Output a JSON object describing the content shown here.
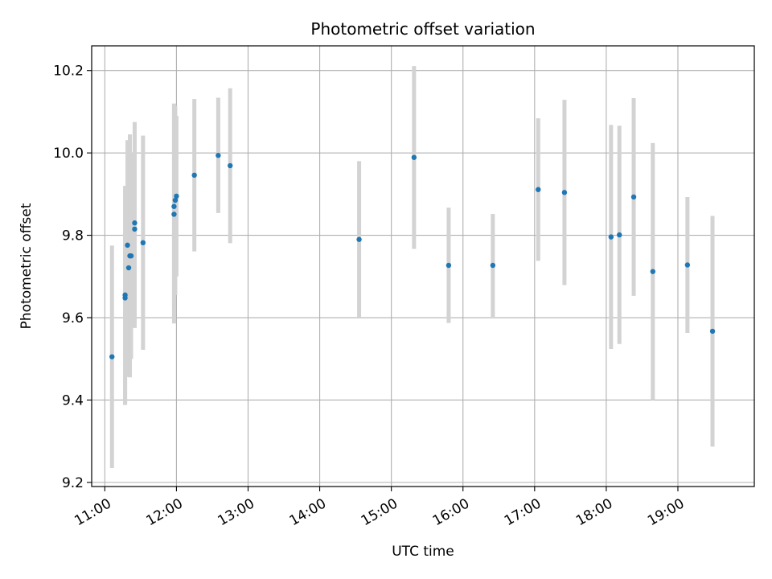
{
  "chart_data": {
    "type": "scatter",
    "title": "Photometric offset variation",
    "xlabel": "UTC time",
    "ylabel": "Photometric offset",
    "grid": true,
    "x_unit": "UTC time (HH:MM)",
    "xlim": [
      "10:49",
      "20:04"
    ],
    "ylim": [
      9.19,
      10.26
    ],
    "x_ticks": [
      "11:00",
      "12:00",
      "13:00",
      "14:00",
      "15:00",
      "16:00",
      "17:00",
      "18:00",
      "19:00"
    ],
    "y_ticks": [
      "9.2",
      "9.4",
      "9.6",
      "9.8",
      "10.0",
      "10.2"
    ],
    "colors": {
      "points": "#1f77b4",
      "error_bars": "#d3d3d3",
      "grid": "#b0b0b0"
    },
    "series": [
      {
        "points": [
          {
            "x": "11:06",
            "y": 9.505,
            "err": 0.27
          },
          {
            "x": "11:17",
            "y": 9.655,
            "err": 0.265
          },
          {
            "x": "11:17",
            "y": 9.648,
            "err": 0.26
          },
          {
            "x": "11:19",
            "y": 9.776,
            "err": 0.255
          },
          {
            "x": "11:20",
            "y": 9.721,
            "err": 0.265
          },
          {
            "x": "11:21",
            "y": 9.75,
            "err": 0.295
          },
          {
            "x": "11:22",
            "y": 9.75,
            "err": 0.25
          },
          {
            "x": "11:25",
            "y": 9.83,
            "err": 0.245
          },
          {
            "x": "11:25",
            "y": 9.815,
            "err": 0.24
          },
          {
            "x": "11:32",
            "y": 9.782,
            "err": 0.26
          },
          {
            "x": "11:58",
            "y": 9.851,
            "err": 0.265
          },
          {
            "x": "11:58",
            "y": 9.87,
            "err": 0.25
          },
          {
            "x": "11:59",
            "y": 9.885,
            "err": 0.23
          },
          {
            "x": "12:00",
            "y": 9.895,
            "err": 0.195
          },
          {
            "x": "12:15",
            "y": 9.946,
            "err": 0.185
          },
          {
            "x": "12:35",
            "y": 9.994,
            "err": 0.14
          },
          {
            "x": "12:45",
            "y": 9.969,
            "err": 0.188
          },
          {
            "x": "14:33",
            "y": 9.79,
            "err": 0.19
          },
          {
            "x": "15:19",
            "y": 9.989,
            "err": 0.222
          },
          {
            "x": "15:48",
            "y": 9.727,
            "err": 0.14
          },
          {
            "x": "16:25",
            "y": 9.727,
            "err": 0.125
          },
          {
            "x": "17:03",
            "y": 9.911,
            "err": 0.173
          },
          {
            "x": "17:25",
            "y": 9.904,
            "err": 0.225
          },
          {
            "x": "18:04",
            "y": 9.796,
            "err": 0.272
          },
          {
            "x": "18:11",
            "y": 9.801,
            "err": 0.265
          },
          {
            "x": "18:23",
            "y": 9.893,
            "err": 0.24
          },
          {
            "x": "18:39",
            "y": 9.712,
            "err": 0.312
          },
          {
            "x": "19:08",
            "y": 9.728,
            "err": 0.165
          },
          {
            "x": "19:29",
            "y": 9.567,
            "err": 0.28
          }
        ]
      }
    ]
  }
}
